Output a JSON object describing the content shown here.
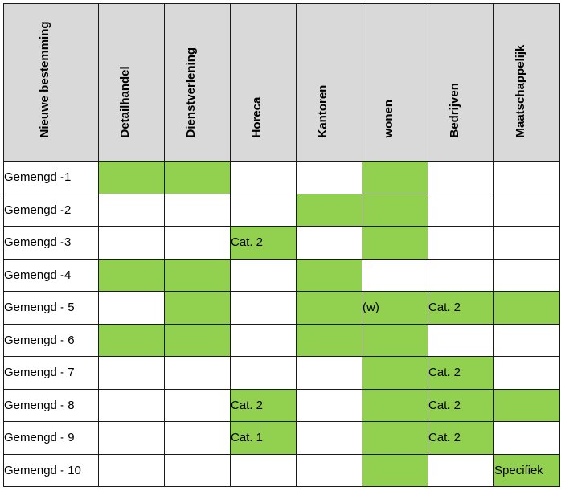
{
  "colors": {
    "header_bg": "#d9d9d9",
    "marked": "#92d050"
  },
  "headers": [
    "Nieuwe bestemming",
    "Detailhandel",
    "Dienstverlening",
    "Horeca",
    "Kantoren",
    "wonen",
    "Bedrijven",
    "Maatschappelijk"
  ],
  "rows": [
    {
      "label": "Gemengd -1",
      "cells": [
        {
          "m": true,
          "t": ""
        },
        {
          "m": true,
          "t": ""
        },
        {
          "m": false,
          "t": ""
        },
        {
          "m": false,
          "t": ""
        },
        {
          "m": true,
          "t": ""
        },
        {
          "m": false,
          "t": ""
        },
        {
          "m": false,
          "t": ""
        }
      ]
    },
    {
      "label": "Gemengd  -2",
      "cells": [
        {
          "m": false,
          "t": ""
        },
        {
          "m": false,
          "t": ""
        },
        {
          "m": false,
          "t": ""
        },
        {
          "m": true,
          "t": ""
        },
        {
          "m": true,
          "t": ""
        },
        {
          "m": false,
          "t": ""
        },
        {
          "m": false,
          "t": ""
        }
      ]
    },
    {
      "label": "Gemengd  -3",
      "cells": [
        {
          "m": false,
          "t": ""
        },
        {
          "m": false,
          "t": ""
        },
        {
          "m": true,
          "t": "Cat. 2"
        },
        {
          "m": false,
          "t": ""
        },
        {
          "m": true,
          "t": ""
        },
        {
          "m": false,
          "t": ""
        },
        {
          "m": false,
          "t": ""
        }
      ]
    },
    {
      "label": "Gemengd  -4",
      "cells": [
        {
          "m": true,
          "t": ""
        },
        {
          "m": true,
          "t": ""
        },
        {
          "m": false,
          "t": ""
        },
        {
          "m": true,
          "t": ""
        },
        {
          "m": false,
          "t": ""
        },
        {
          "m": false,
          "t": ""
        },
        {
          "m": false,
          "t": ""
        }
      ]
    },
    {
      "label": "Gemengd - 5",
      "cells": [
        {
          "m": false,
          "t": ""
        },
        {
          "m": true,
          "t": ""
        },
        {
          "m": false,
          "t": ""
        },
        {
          "m": true,
          "t": ""
        },
        {
          "m": true,
          "t": "(w)"
        },
        {
          "m": true,
          "t": "Cat. 2"
        },
        {
          "m": true,
          "t": ""
        }
      ]
    },
    {
      "label": "Gemengd - 6",
      "cells": [
        {
          "m": true,
          "t": ""
        },
        {
          "m": true,
          "t": ""
        },
        {
          "m": false,
          "t": ""
        },
        {
          "m": true,
          "t": ""
        },
        {
          "m": true,
          "t": ""
        },
        {
          "m": false,
          "t": ""
        },
        {
          "m": false,
          "t": ""
        }
      ]
    },
    {
      "label": "Gemengd - 7",
      "cells": [
        {
          "m": false,
          "t": ""
        },
        {
          "m": false,
          "t": ""
        },
        {
          "m": false,
          "t": ""
        },
        {
          "m": false,
          "t": ""
        },
        {
          "m": true,
          "t": ""
        },
        {
          "m": true,
          "t": "Cat. 2"
        },
        {
          "m": false,
          "t": ""
        }
      ]
    },
    {
      "label": "Gemengd - 8",
      "cells": [
        {
          "m": false,
          "t": ""
        },
        {
          "m": false,
          "t": ""
        },
        {
          "m": true,
          "t": "Cat. 2"
        },
        {
          "m": false,
          "t": ""
        },
        {
          "m": true,
          "t": ""
        },
        {
          "m": true,
          "t": "Cat. 2"
        },
        {
          "m": true,
          "t": ""
        }
      ]
    },
    {
      "label": "Gemengd - 9",
      "cells": [
        {
          "m": false,
          "t": ""
        },
        {
          "m": false,
          "t": ""
        },
        {
          "m": true,
          "t": "Cat. 1"
        },
        {
          "m": false,
          "t": ""
        },
        {
          "m": true,
          "t": ""
        },
        {
          "m": true,
          "t": "Cat. 2"
        },
        {
          "m": false,
          "t": ""
        }
      ]
    },
    {
      "label": "Gemengd - 10",
      "cells": [
        {
          "m": false,
          "t": ""
        },
        {
          "m": false,
          "t": ""
        },
        {
          "m": false,
          "t": ""
        },
        {
          "m": false,
          "t": ""
        },
        {
          "m": true,
          "t": ""
        },
        {
          "m": false,
          "t": ""
        },
        {
          "m": true,
          "t": "Specifiek"
        }
      ]
    }
  ]
}
